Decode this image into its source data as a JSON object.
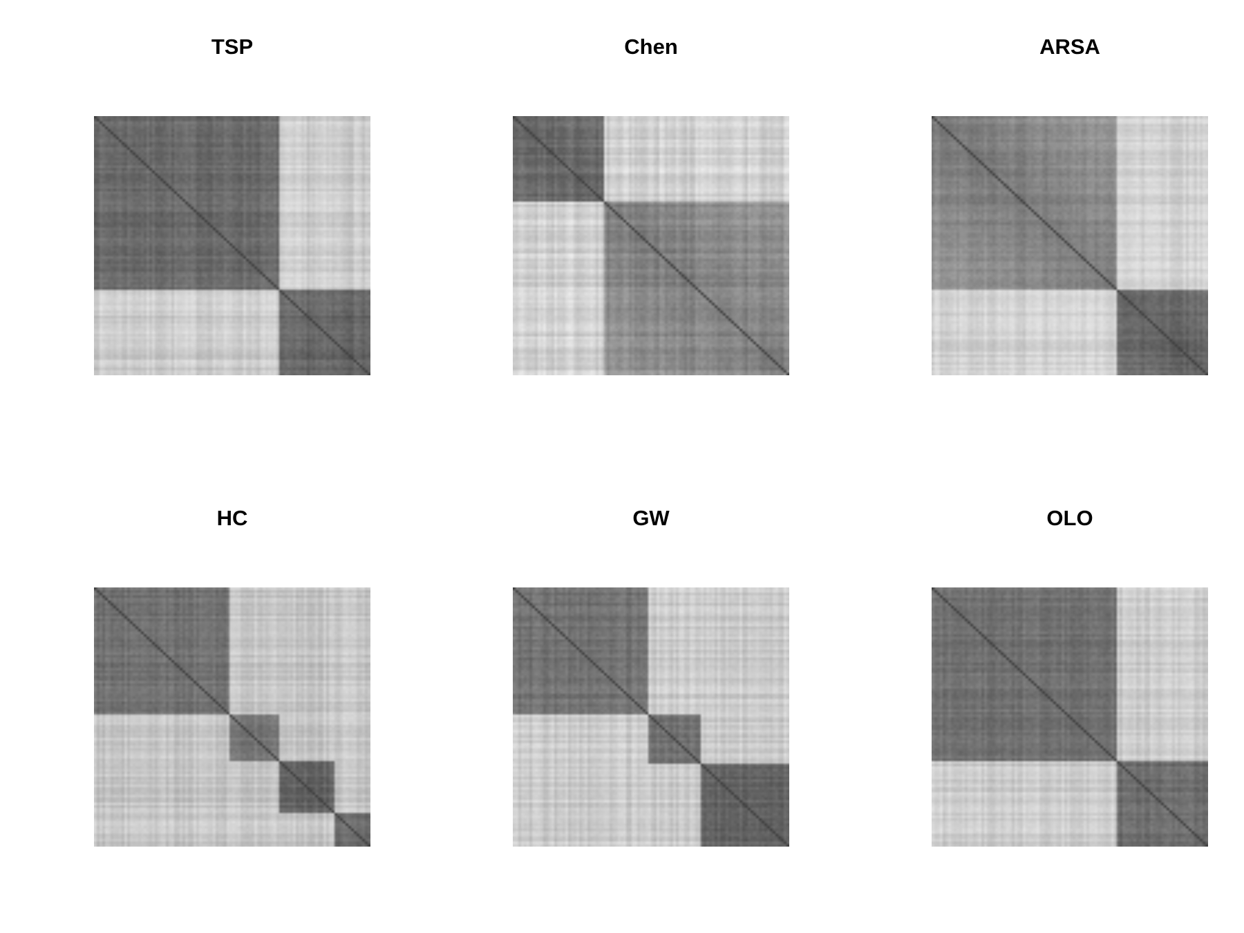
{
  "chart_data": [
    {
      "type": "heatmap",
      "title": "TSP",
      "colormap": "grayscale",
      "groups": [
        67,
        33
      ],
      "cluster_shades": [
        0.42,
        0.4
      ],
      "between_shade": 0.8,
      "texture": 0.1,
      "gradient": 0.0
    },
    {
      "type": "heatmap",
      "title": "Chen",
      "colormap": "grayscale",
      "groups": [
        33,
        67
      ],
      "cluster_shades": [
        0.4,
        0.5
      ],
      "between_shade": 0.82,
      "texture": 0.12,
      "gradient": 0.25
    },
    {
      "type": "heatmap",
      "title": "ARSA",
      "colormap": "grayscale",
      "groups": [
        67,
        33
      ],
      "cluster_shades": [
        0.48,
        0.38
      ],
      "between_shade": 0.82,
      "texture": 0.09,
      "gradient": 0.3
    },
    {
      "type": "heatmap",
      "title": "HC",
      "colormap": "grayscale",
      "groups": [
        49,
        18,
        20,
        13
      ],
      "cluster_shades": [
        0.45,
        0.46,
        0.4,
        0.42
      ],
      "between_shade": 0.78,
      "texture": 0.1,
      "gradient": 0.0
    },
    {
      "type": "heatmap",
      "title": "GW",
      "colormap": "grayscale",
      "groups": [
        49,
        19,
        32
      ],
      "cluster_shades": [
        0.45,
        0.44,
        0.4
      ],
      "between_shade": 0.8,
      "texture": 0.1,
      "gradient": 0.0
    },
    {
      "type": "heatmap",
      "title": "OLO",
      "colormap": "grayscale",
      "groups": [
        67,
        33
      ],
      "cluster_shades": [
        0.45,
        0.42
      ],
      "between_shade": 0.8,
      "texture": 0.1,
      "gradient": 0.0
    }
  ]
}
